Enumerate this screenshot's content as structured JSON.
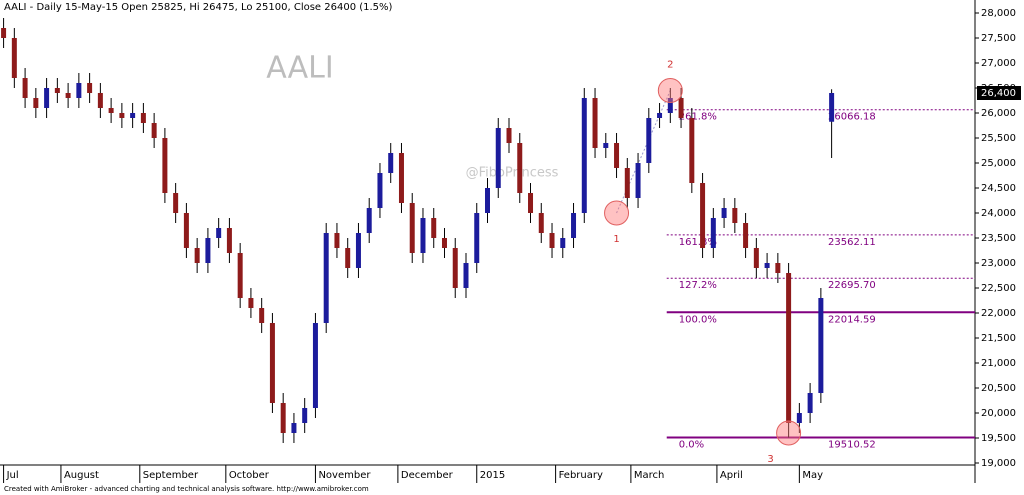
{
  "chart_data": {
    "type": "candlestick",
    "title": "AALI - Daily 15-May-15 Open 25825, Hi 26475, Lo 25100, Close 26400 (1.5%)",
    "watermark": "AALI",
    "credit": "@FiboPrincess",
    "footer": "Created with AmiBroker - advanced charting and technical analysis software. http://www.amibroker.com",
    "up_color": "#1c1c9c",
    "down_color": "#8e1b1b",
    "x": [
      1,
      4,
      7,
      10,
      13,
      16,
      19,
      22,
      25,
      28,
      31,
      34,
      37,
      40,
      43,
      46,
      49,
      52,
      55,
      58,
      61,
      64,
      67,
      70,
      73,
      76,
      79,
      82,
      85,
      88,
      91,
      94,
      97,
      100,
      103,
      106,
      109,
      112,
      115,
      118,
      121,
      124,
      127,
      130,
      133,
      136,
      139,
      142,
      145,
      148,
      151,
      154,
      157,
      160,
      163,
      166,
      169,
      172,
      175,
      178,
      181,
      184,
      187,
      190,
      193,
      196,
      199,
      202,
      205,
      208,
      211,
      214,
      217,
      220,
      223,
      226,
      229,
      232
    ],
    "open": [
      27700,
      27500,
      26700,
      26300,
      26100,
      26500,
      26400,
      26300,
      26600,
      26400,
      26100,
      26000,
      25900,
      26000,
      25800,
      25500,
      24400,
      24000,
      23300,
      23000,
      23500,
      23700,
      23200,
      22300,
      22100,
      21800,
      20200,
      19600,
      19800,
      20100,
      21800,
      23600,
      23300,
      22900,
      23600,
      24100,
      24800,
      25200,
      24200,
      23200,
      23900,
      23500,
      23300,
      22500,
      23000,
      24000,
      24500,
      25700,
      25400,
      24400,
      24000,
      23600,
      23300,
      23500,
      24000,
      26300,
      25300,
      25400,
      24900,
      24300,
      25000,
      25900,
      26000,
      26300,
      25900,
      24600,
      23300,
      23900,
      24100,
      23800,
      23300,
      22900,
      23000,
      22800,
      19800,
      20000,
      20400,
      25825
    ],
    "high": [
      27900,
      27700,
      26900,
      26500,
      26700,
      26700,
      26600,
      26800,
      26800,
      26600,
      26300,
      26200,
      26200,
      26200,
      26000,
      25700,
      24600,
      24200,
      23500,
      23700,
      23900,
      23900,
      23400,
      22500,
      22300,
      22000,
      20400,
      20000,
      20300,
      22000,
      23800,
      23800,
      23500,
      23800,
      24300,
      25000,
      25400,
      25400,
      24400,
      24100,
      24100,
      23700,
      23500,
      23200,
      24200,
      24700,
      25900,
      25900,
      25600,
      24600,
      24200,
      23800,
      23700,
      24200,
      26500,
      26500,
      25600,
      25600,
      25100,
      25200,
      26100,
      26200,
      26500,
      26500,
      26100,
      24800,
      24100,
      24300,
      24300,
      24000,
      23500,
      23200,
      23200,
      23000,
      20200,
      20600,
      22500,
      26475
    ],
    "low": [
      27300,
      26500,
      26100,
      25900,
      25900,
      26200,
      26100,
      26100,
      26200,
      25900,
      25800,
      25700,
      25700,
      25600,
      25300,
      24200,
      23800,
      23100,
      22800,
      22800,
      23300,
      23000,
      22100,
      21900,
      21600,
      20000,
      19400,
      19400,
      19600,
      19900,
      21600,
      23100,
      22700,
      22700,
      23400,
      23900,
      24600,
      24000,
      23000,
      23000,
      23300,
      23100,
      22300,
      22300,
      22800,
      23800,
      24300,
      25200,
      24200,
      23800,
      23400,
      23100,
      23100,
      23300,
      23800,
      25100,
      25100,
      24700,
      24100,
      24100,
      24800,
      25700,
      25800,
      25700,
      24400,
      23100,
      23100,
      23700,
      23600,
      23100,
      22700,
      22700,
      22600,
      19510,
      19600,
      19800,
      20200,
      25100
    ],
    "close": [
      27500,
      26700,
      26300,
      26100,
      26500,
      26400,
      26300,
      26600,
      26400,
      26100,
      26000,
      25900,
      26000,
      25800,
      25500,
      24400,
      24000,
      23300,
      23000,
      23500,
      23700,
      23200,
      22300,
      22100,
      21800,
      20200,
      19600,
      19800,
      20100,
      21800,
      23600,
      23300,
      22900,
      23600,
      24100,
      24800,
      25200,
      24200,
      23200,
      23900,
      23500,
      23300,
      22500,
      23000,
      24000,
      24500,
      25700,
      25400,
      24400,
      24000,
      23600,
      23300,
      23500,
      24000,
      26300,
      25300,
      25400,
      24900,
      24300,
      25000,
      25900,
      26000,
      26300,
      25900,
      24600,
      23300,
      23900,
      24100,
      23800,
      23300,
      22900,
      23000,
      22800,
      19800,
      20000,
      20400,
      22300,
      26400
    ],
    "last_price": {
      "value": 26400,
      "label": "26,400"
    },
    "xlim": [
      0,
      272
    ],
    "ylim": [
      19000,
      28000
    ],
    "xticks": [
      {
        "value": 1,
        "label": "Jul"
      },
      {
        "value": 17,
        "label": "August"
      },
      {
        "value": 39,
        "label": "September"
      },
      {
        "value": 63,
        "label": "October"
      },
      {
        "value": 88,
        "label": "November"
      },
      {
        "value": 111,
        "label": "December"
      },
      {
        "value": 133,
        "label": "2015"
      },
      {
        "value": 155,
        "label": "February"
      },
      {
        "value": 176,
        "label": "March"
      },
      {
        "value": 200,
        "label": "April"
      },
      {
        "value": 223,
        "label": "May"
      }
    ],
    "yticks": [
      {
        "value": 19000,
        "label": "19,000"
      },
      {
        "value": 19500,
        "label": "19,500"
      },
      {
        "value": 20000,
        "label": "20,000"
      },
      {
        "value": 20500,
        "label": "20,500"
      },
      {
        "value": 21000,
        "label": "21,000"
      },
      {
        "value": 21500,
        "label": "21,500"
      },
      {
        "value": 22000,
        "label": "22,000"
      },
      {
        "value": 22500,
        "label": "22,500"
      },
      {
        "value": 23000,
        "label": "23,000"
      },
      {
        "value": 23500,
        "label": "23,500"
      },
      {
        "value": 24000,
        "label": "24,000"
      },
      {
        "value": 24500,
        "label": "24,500"
      },
      {
        "value": 25000,
        "label": "25,000"
      },
      {
        "value": 25500,
        "label": "25,500"
      },
      {
        "value": 26000,
        "label": "26,000"
      },
      {
        "value": 26500,
        "label": "26,500"
      },
      {
        "value": 27000,
        "label": "27,000"
      },
      {
        "value": 27500,
        "label": "27,500"
      },
      {
        "value": 28000,
        "label": "28,000"
      }
    ],
    "fib_start": 186,
    "fib_levels": [
      {
        "label": "0.0%",
        "value": 19510.52,
        "solid": true
      },
      {
        "label": "100.0%",
        "value": 22014.59,
        "solid": true
      },
      {
        "label": "127.2%",
        "value": 22695.7,
        "value_label": "22695.70",
        "solid": false
      },
      {
        "label": "161.8%",
        "value": 23562.11,
        "solid": false
      },
      {
        "label": "261.8%",
        "value": 26066.18,
        "solid": false
      }
    ],
    "points": [
      {
        "label": "1",
        "x": 172,
        "y": 24000
      },
      {
        "label": "2",
        "x": 187,
        "y": 26450
      },
      {
        "label": "3",
        "x": 220,
        "y": 19600
      }
    ]
  }
}
